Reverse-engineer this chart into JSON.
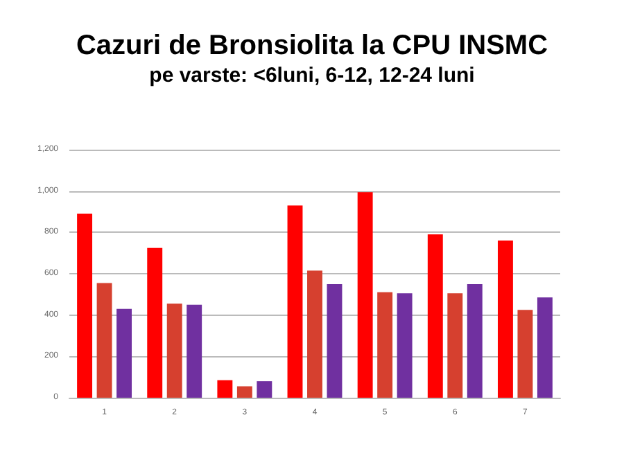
{
  "chart_data": {
    "type": "bar",
    "title": "Cazuri de Bronsiolita la CPU INSMC",
    "subtitle": "pe varste: <6luni, 6-12, 12-24 luni",
    "categories": [
      "1",
      "2",
      "3",
      "4",
      "5",
      "6",
      "7"
    ],
    "series": [
      {
        "color": "#ff0000",
        "values": [
          890,
          725,
          85,
          930,
          995,
          790,
          760
        ]
      },
      {
        "color": "#d6402f",
        "values": [
          555,
          455,
          55,
          615,
          510,
          505,
          425
        ]
      },
      {
        "color": "#7030a0",
        "values": [
          430,
          450,
          80,
          550,
          505,
          550,
          485
        ]
      }
    ],
    "ylim": [
      0,
      1200
    ],
    "yticks": [
      0,
      200,
      400,
      600,
      800,
      {
        "value": 1000,
        "label": "1,000"
      },
      {
        "value": 1200,
        "label": "1,200"
      }
    ],
    "grid": "y"
  }
}
